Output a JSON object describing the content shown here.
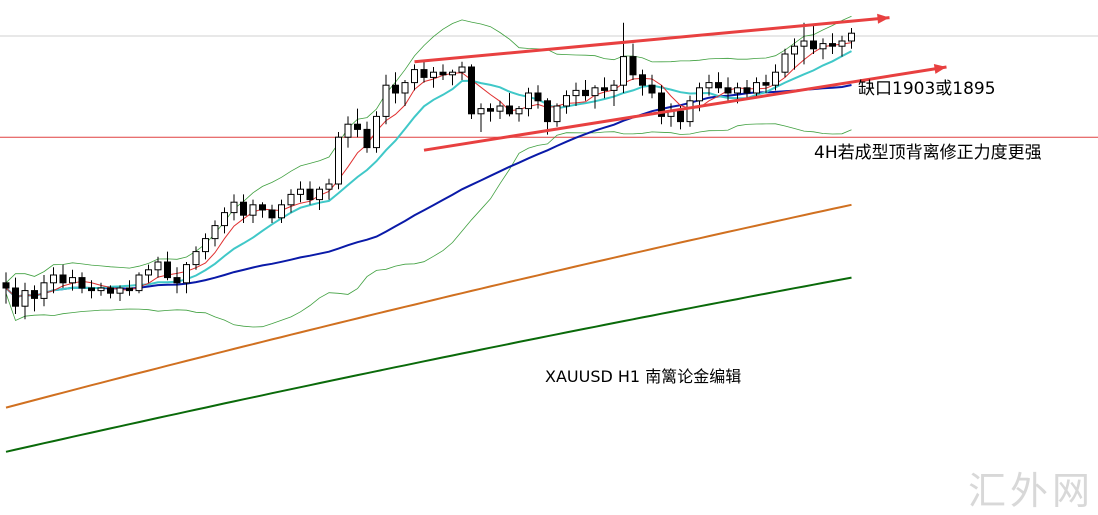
{
  "chart_data": {
    "type": "candlestick",
    "symbol_label": "XAUUSD  H1  南篱论金编辑",
    "annotations": {
      "gap": "缺口1903或1895",
      "divergence": "4H若成型顶背离修正力度更强"
    },
    "watermark": "汇外网",
    "y_range": [
      1740,
      1915
    ],
    "horizontal_line": 1868,
    "colors": {
      "red_line": "#e03030",
      "cyan_ma": "#40c8c8",
      "blue_ma": "#0a1aa8",
      "orange_ma": "#d07020",
      "green_ma": "#0a6a0a",
      "bollinger": "#40a040",
      "candle": "#000000",
      "trend_arrow": "#e84040",
      "hline": "#e04040"
    },
    "candles": [
      [
        1812,
        1816,
        1804,
        1810
      ],
      [
        1810,
        1814,
        1800,
        1803
      ],
      [
        1803,
        1812,
        1798,
        1809
      ],
      [
        1809,
        1811,
        1801,
        1806
      ],
      [
        1806,
        1815,
        1803,
        1812
      ],
      [
        1812,
        1818,
        1808,
        1815
      ],
      [
        1815,
        1819,
        1810,
        1812
      ],
      [
        1812,
        1817,
        1809,
        1814
      ],
      [
        1814,
        1816,
        1808,
        1810
      ],
      [
        1810,
        1813,
        1806,
        1809
      ],
      [
        1809,
        1812,
        1807,
        1810
      ],
      [
        1810,
        1811,
        1806,
        1808
      ],
      [
        1808,
        1811,
        1805,
        1810
      ],
      [
        1810,
        1813,
        1807,
        1809
      ],
      [
        1809,
        1816,
        1808,
        1815
      ],
      [
        1815,
        1819,
        1812,
        1817
      ],
      [
        1817,
        1822,
        1814,
        1820
      ],
      [
        1820,
        1824,
        1813,
        1814
      ],
      [
        1814,
        1818,
        1808,
        1812
      ],
      [
        1812,
        1820,
        1808,
        1819
      ],
      [
        1819,
        1826,
        1817,
        1824
      ],
      [
        1824,
        1831,
        1821,
        1829
      ],
      [
        1829,
        1836,
        1826,
        1834
      ],
      [
        1834,
        1841,
        1831,
        1839
      ],
      [
        1839,
        1846,
        1836,
        1843
      ],
      [
        1843,
        1846,
        1835,
        1838
      ],
      [
        1838,
        1844,
        1835,
        1842
      ],
      [
        1842,
        1843,
        1837,
        1840
      ],
      [
        1840,
        1842,
        1835,
        1837
      ],
      [
        1837,
        1844,
        1835,
        1842
      ],
      [
        1842,
        1848,
        1839,
        1846
      ],
      [
        1846,
        1851,
        1843,
        1848
      ],
      [
        1848,
        1851,
        1842,
        1844
      ],
      [
        1844,
        1849,
        1840,
        1848
      ],
      [
        1848,
        1852,
        1844,
        1850
      ],
      [
        1850,
        1870,
        1848,
        1868
      ],
      [
        1868,
        1876,
        1864,
        1873
      ],
      [
        1873,
        1879,
        1868,
        1871
      ],
      [
        1871,
        1874,
        1862,
        1864
      ],
      [
        1864,
        1878,
        1862,
        1876
      ],
      [
        1876,
        1892,
        1873,
        1888
      ],
      [
        1888,
        1893,
        1881,
        1885
      ],
      [
        1885,
        1890,
        1880,
        1889
      ],
      [
        1889,
        1896,
        1886,
        1894
      ],
      [
        1894,
        1897,
        1889,
        1891
      ],
      [
        1891,
        1895,
        1887,
        1893
      ],
      [
        1893,
        1896,
        1890,
        1892
      ],
      [
        1892,
        1894,
        1888,
        1893
      ],
      [
        1893,
        1897,
        1890,
        1895
      ],
      [
        1895,
        1896,
        1875,
        1877
      ],
      [
        1877,
        1881,
        1870,
        1879
      ],
      [
        1879,
        1881,
        1874,
        1878
      ],
      [
        1878,
        1882,
        1875,
        1880
      ],
      [
        1880,
        1885,
        1876,
        1877
      ],
      [
        1877,
        1880,
        1874,
        1879
      ],
      [
        1879,
        1887,
        1876,
        1885
      ],
      [
        1885,
        1888,
        1879,
        1882
      ],
      [
        1882,
        1883,
        1869,
        1874
      ],
      [
        1874,
        1881,
        1872,
        1880
      ],
      [
        1880,
        1886,
        1877,
        1884
      ],
      [
        1884,
        1889,
        1880,
        1886
      ],
      [
        1886,
        1890,
        1882,
        1884
      ],
      [
        1884,
        1888,
        1879,
        1887
      ],
      [
        1887,
        1891,
        1883,
        1886
      ],
      [
        1886,
        1890,
        1880,
        1888
      ],
      [
        1888,
        1912,
        1885,
        1899
      ],
      [
        1899,
        1904,
        1890,
        1892
      ],
      [
        1892,
        1894,
        1884,
        1888
      ],
      [
        1888,
        1892,
        1883,
        1885
      ],
      [
        1885,
        1888,
        1873,
        1876
      ],
      [
        1876,
        1881,
        1872,
        1878
      ],
      [
        1878,
        1880,
        1871,
        1874
      ],
      [
        1874,
        1884,
        1872,
        1882
      ],
      [
        1882,
        1889,
        1878,
        1887
      ],
      [
        1887,
        1892,
        1884,
        1889
      ],
      [
        1889,
        1893,
        1885,
        1887
      ],
      [
        1887,
        1891,
        1882,
        1885
      ],
      [
        1885,
        1889,
        1881,
        1887
      ],
      [
        1887,
        1890,
        1883,
        1885
      ],
      [
        1885,
        1891,
        1883,
        1889
      ],
      [
        1889,
        1892,
        1885,
        1888
      ],
      [
        1888,
        1896,
        1886,
        1893
      ],
      [
        1893,
        1902,
        1891,
        1900
      ],
      [
        1900,
        1906,
        1894,
        1903
      ],
      [
        1903,
        1912,
        1896,
        1905
      ],
      [
        1905,
        1911,
        1900,
        1902
      ],
      [
        1902,
        1906,
        1898,
        1904
      ],
      [
        1904,
        1908,
        1900,
        1903
      ],
      [
        1903,
        1907,
        1899,
        1905
      ],
      [
        1905,
        1910,
        1902,
        1908
      ]
    ]
  }
}
